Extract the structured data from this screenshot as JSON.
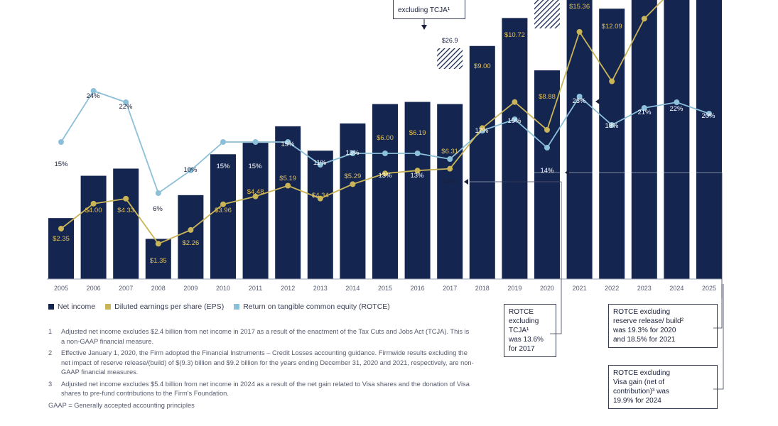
{
  "chart_data": {
    "type": "bar",
    "categories": [
      "2005",
      "2006",
      "2007",
      "2008",
      "2009",
      "2010",
      "2011",
      "2012",
      "2013",
      "2014",
      "2015",
      "2016",
      "2017",
      "2018",
      "2019",
      "2020",
      "2021",
      "2022",
      "2023",
      "2024",
      "2025"
    ],
    "ylim": [
      0,
      60
    ],
    "series": [
      {
        "name": "Net income",
        "values": [
          8.5,
          14.4,
          15.4,
          5.6,
          11.7,
          17.4,
          19.0,
          21.3,
          17.9,
          21.7,
          24.4,
          24.7,
          24.4,
          32.5,
          36.4,
          29.1,
          48.3,
          37.7,
          49.6,
          58.5,
          57.0
        ],
        "labels": [
          "$8.5",
          "$14.4",
          "$15.4",
          "$5.6",
          "$11.7",
          "$17.4",
          "$19.0",
          "$21.3",
          "$17.9",
          "$21.7",
          "$24.4",
          "$24.7",
          "$24.4",
          "$32.5",
          "",
          "$29.1",
          "",
          "",
          "",
          "",
          ""
        ]
      },
      {
        "name": "Diluted earnings per share (EPS)",
        "values": [
          2.35,
          4.0,
          4.33,
          1.35,
          2.26,
          3.96,
          4.48,
          5.19,
          4.34,
          5.29,
          6.0,
          6.19,
          6.31,
          9.0,
          10.72,
          8.88,
          15.36,
          12.09,
          16.23,
          19.75,
          20.02
        ],
        "labels": [
          "$2.35",
          "$4.00",
          "$4.33",
          "$1.35",
          "$2.26",
          "$3.96",
          "$4.48",
          "$5.19",
          "$4.34",
          "$5.29",
          "$6.00",
          "$6.19",
          "$6.31",
          "$9.00",
          "$10.72",
          "$8.88",
          "$15.36",
          "$12.09",
          "",
          "",
          ""
        ]
      },
      {
        "name": "Return on tangible common equity (ROTCE)",
        "values": [
          15,
          24,
          22,
          6,
          10,
          15,
          15,
          15,
          11,
          13,
          13,
          13,
          12,
          17,
          19,
          14,
          23,
          18,
          21,
          22,
          20
        ],
        "labels": [
          "15%",
          "24%",
          "22%",
          "6%",
          "10%",
          "15%",
          "15%",
          "15%",
          "11%",
          "13%",
          "13%",
          "13%",
          "12%",
          "17%",
          "19%",
          "14%",
          "23%",
          "18%",
          "21%",
          "22%",
          "20%"
        ]
      }
    ],
    "annotations": {
      "tcja_total_label": "$26.9",
      "tcja_box_lines": [
        "excluding TCJA¹"
      ]
    },
    "colors": {
      "net_income": "#142550",
      "eps": "#c9b457",
      "rotce": "#8cbfd8",
      "axis": "#9aa0b0"
    }
  },
  "legend": {
    "items": [
      {
        "label": "Net income",
        "color": "#142550"
      },
      {
        "label": "Diluted earnings per share (EPS)",
        "color": "#c9b457"
      },
      {
        "label": "Return on tangible common equity (ROTCE)",
        "color": "#8cbfd8"
      }
    ]
  },
  "notes": [
    {
      "num": "1",
      "text": "Adjusted net income excludes $2.4 billion from net income in 2017 as a result of the enactment of the Tax Cuts and Jobs Act (TCJA). This is a non-GAAP financial measure."
    },
    {
      "num": "2",
      "text": "Effective January 1, 2020, the Firm adopted the Financial Instruments – Credit Losses accounting guidance. Firmwide results excluding the net impact of reserve release/(build) of $(9.3) billion and $9.2 billion for the years ending December 31, 2020 and 2021, respectively, are non-GAAP financial measures."
    },
    {
      "num": "3",
      "text": "Adjusted net income excludes $5.4 billion from net income in 2024 as a result of the net gain related to Visa shares and the donation of Visa shares to pre-fund contributions to the Firm's Foundation."
    }
  ],
  "gaap_note": "GAAP = Generally accepted accounting principles",
  "callouts": {
    "rotce_2017": "ROTCE excluding TCJA¹ was 13.6% for 2017",
    "rotce_2017_lines": [
      "ROTCE",
      "excluding",
      "TCJA¹",
      "was 13.6%",
      "for 2017"
    ],
    "rotce_2020_lines": [
      "ROTCE excluding",
      "reserve release/ build²",
      "was 19.3% for 2020",
      "and 18.5% for 2021"
    ],
    "rotce_2024_lines": [
      "ROTCE excluding",
      "Visa gain (net of",
      "contribution)³ was",
      "19.9% for 2024"
    ]
  }
}
